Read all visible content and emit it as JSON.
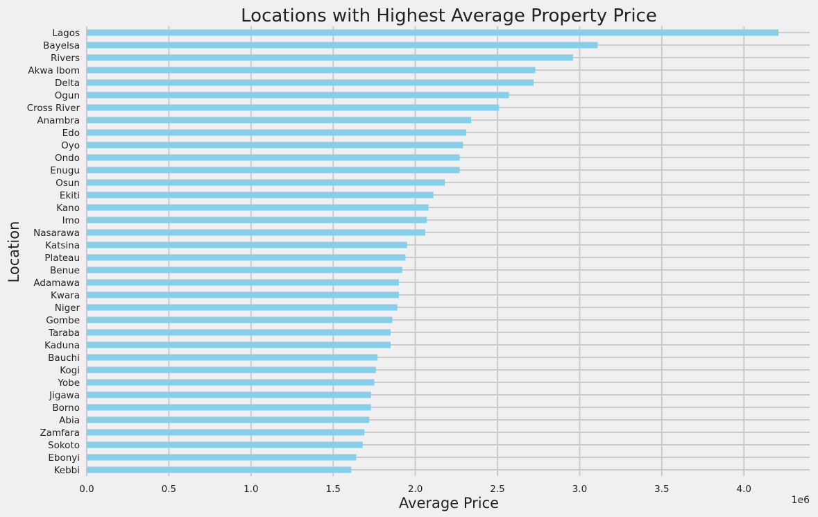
{
  "chart_data": {
    "type": "bar",
    "orientation": "horizontal",
    "title": "Locations with Highest Average Property Price",
    "xlabel": "Average Price",
    "ylabel": "Location",
    "x_offset_label": "1e6",
    "x_scale_factor": 1000000,
    "xlim": [
      0,
      4.4
    ],
    "x_ticks": [
      0.0,
      0.5,
      1.0,
      1.5,
      2.0,
      2.5,
      3.0,
      3.5,
      4.0
    ],
    "x_tick_labels": [
      "0.0",
      "0.5",
      "1.0",
      "1.5",
      "2.0",
      "2.5",
      "3.0",
      "3.5",
      "4.0"
    ],
    "grid": true,
    "bar_color": "#87ceeb",
    "background_color": "#f0f0f0",
    "grid_color": "#cbcbcb",
    "categories": [
      "Lagos",
      "Bayelsa",
      "Rivers",
      "Akwa Ibom",
      "Delta",
      "Ogun",
      "Cross River",
      "Anambra",
      "Edo",
      "Oyo",
      "Ondo",
      "Enugu",
      "Osun",
      "Ekiti",
      "Kano",
      "Imo",
      "Nasarawa",
      "Katsina",
      "Plateau",
      "Benue",
      "Adamawa",
      "Kwara",
      "Niger",
      "Gombe",
      "Taraba",
      "Kaduna",
      "Bauchi",
      "Kogi",
      "Yobe",
      "Jigawa",
      "Borno",
      "Abia",
      "Zamfara",
      "Sokoto",
      "Ebonyi",
      "Kebbi"
    ],
    "values": [
      4.21,
      3.11,
      2.96,
      2.73,
      2.72,
      2.57,
      2.51,
      2.34,
      2.31,
      2.29,
      2.27,
      2.27,
      2.18,
      2.11,
      2.08,
      2.07,
      2.06,
      1.95,
      1.94,
      1.92,
      1.9,
      1.9,
      1.89,
      1.86,
      1.85,
      1.85,
      1.77,
      1.76,
      1.75,
      1.73,
      1.73,
      1.72,
      1.69,
      1.68,
      1.64,
      1.61
    ]
  }
}
